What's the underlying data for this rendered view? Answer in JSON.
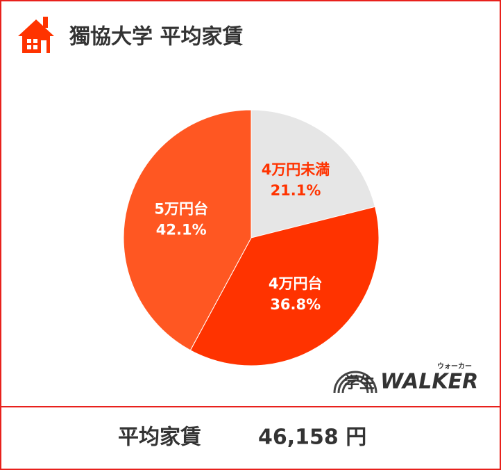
{
  "chart_data": {
    "type": "pie",
    "title": "獨協大学 平均家賃",
    "categories": [
      "4万円未満",
      "4万円台",
      "5万円台"
    ],
    "values": [
      21.1,
      36.8,
      42.1
    ],
    "value_labels": [
      "21.1%",
      "36.8%",
      "42.1%"
    ],
    "colors": [
      "#e6e6e6",
      "#ff3300",
      "#ff5722"
    ],
    "label_colors": [
      "#ff3300",
      "#ffffff",
      "#ffffff"
    ]
  },
  "footer": {
    "label": "平均家賃",
    "value": "46,158 円"
  },
  "logo": {
    "kanji": "学生",
    "brand": "WALKER",
    "kana": "ウォーカー"
  }
}
